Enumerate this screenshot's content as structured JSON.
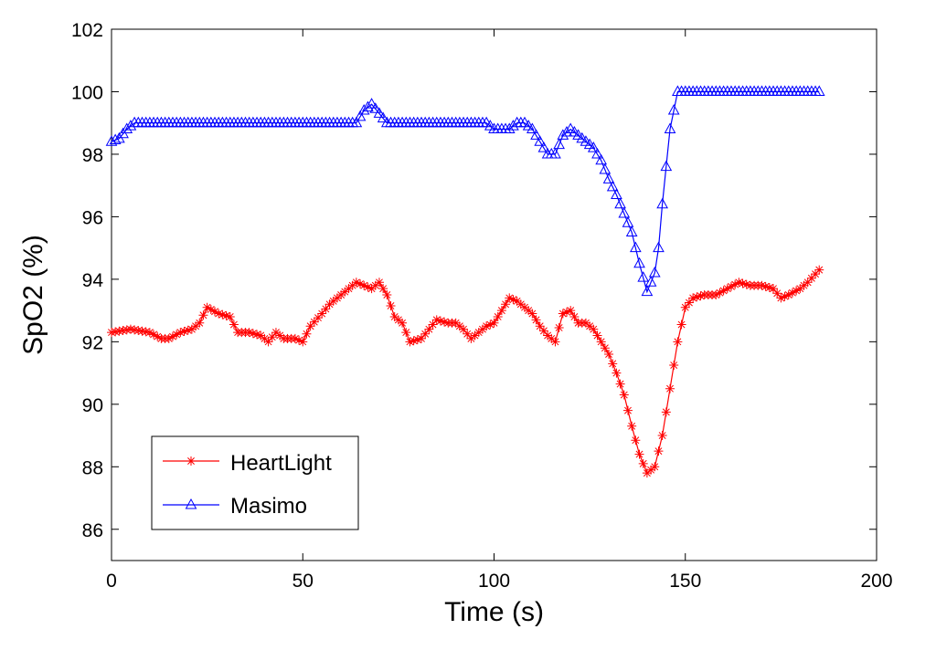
{
  "chart_data": {
    "type": "line",
    "title": "",
    "xlabel": "Time (s)",
    "ylabel": "SpO2 (%)",
    "xlim": [
      0,
      200
    ],
    "ylim": [
      85,
      102
    ],
    "xticks": [
      0,
      50,
      100,
      150,
      200
    ],
    "yticks": [
      86,
      88,
      90,
      92,
      94,
      96,
      98,
      100,
      102
    ],
    "grid": false,
    "legend": {
      "position": "bottom-left",
      "entries": [
        "HeartLight",
        "Masimo"
      ]
    },
    "series": [
      {
        "name": "HeartLight",
        "color": "#ff0000",
        "marker": "asterisk",
        "points": [
          [
            0,
            92.3
          ],
          [
            5,
            92.4
          ],
          [
            10,
            92.3
          ],
          [
            13,
            92.1
          ],
          [
            15,
            92.1
          ],
          [
            18,
            92.3
          ],
          [
            21,
            92.4
          ],
          [
            23,
            92.6
          ],
          [
            25,
            93.1
          ],
          [
            28,
            92.9
          ],
          [
            31,
            92.8
          ],
          [
            33,
            92.3
          ],
          [
            36,
            92.3
          ],
          [
            39,
            92.2
          ],
          [
            41,
            92.0
          ],
          [
            43,
            92.3
          ],
          [
            45,
            92.1
          ],
          [
            48,
            92.1
          ],
          [
            50,
            92.0
          ],
          [
            52,
            92.5
          ],
          [
            55,
            92.9
          ],
          [
            57,
            93.2
          ],
          [
            60,
            93.5
          ],
          [
            62,
            93.7
          ],
          [
            64,
            93.9
          ],
          [
            66,
            93.8
          ],
          [
            68,
            93.7
          ],
          [
            70,
            93.9
          ],
          [
            72,
            93.5
          ],
          [
            74,
            92.8
          ],
          [
            76,
            92.6
          ],
          [
            78,
            92.0
          ],
          [
            81,
            92.1
          ],
          [
            83,
            92.4
          ],
          [
            85,
            92.7
          ],
          [
            88,
            92.6
          ],
          [
            90,
            92.6
          ],
          [
            92,
            92.4
          ],
          [
            94,
            92.1
          ],
          [
            96,
            92.3
          ],
          [
            98,
            92.5
          ],
          [
            100,
            92.6
          ],
          [
            102,
            93.0
          ],
          [
            104,
            93.4
          ],
          [
            106,
            93.3
          ],
          [
            108,
            93.1
          ],
          [
            110,
            92.9
          ],
          [
            112,
            92.5
          ],
          [
            114,
            92.2
          ],
          [
            116,
            92.0
          ],
          [
            118,
            92.9
          ],
          [
            120,
            93.0
          ],
          [
            122,
            92.6
          ],
          [
            124,
            92.6
          ],
          [
            126,
            92.4
          ],
          [
            128,
            92.0
          ],
          [
            130,
            91.6
          ],
          [
            132,
            91.0
          ],
          [
            134,
            90.3
          ],
          [
            136,
            89.3
          ],
          [
            138,
            88.4
          ],
          [
            140,
            87.8
          ],
          [
            142,
            88.0
          ],
          [
            144,
            89.0
          ],
          [
            146,
            90.5
          ],
          [
            148,
            92.0
          ],
          [
            150,
            93.1
          ],
          [
            152,
            93.4
          ],
          [
            155,
            93.5
          ],
          [
            158,
            93.5
          ],
          [
            161,
            93.7
          ],
          [
            164,
            93.9
          ],
          [
            167,
            93.8
          ],
          [
            170,
            93.8
          ],
          [
            173,
            93.7
          ],
          [
            175,
            93.4
          ],
          [
            177,
            93.5
          ],
          [
            180,
            93.7
          ],
          [
            182,
            93.9
          ],
          [
            185,
            94.3
          ]
        ]
      },
      {
        "name": "Masimo",
        "color": "#0000ff",
        "marker": "triangle",
        "points": [
          [
            0,
            98.4
          ],
          [
            2,
            98.5
          ],
          [
            4,
            98.8
          ],
          [
            6,
            99.0
          ],
          [
            10,
            99.0
          ],
          [
            20,
            99.0
          ],
          [
            30,
            99.0
          ],
          [
            40,
            99.0
          ],
          [
            50,
            99.0
          ],
          [
            60,
            99.0
          ],
          [
            64,
            99.0
          ],
          [
            66,
            99.4
          ],
          [
            68,
            99.6
          ],
          [
            70,
            99.3
          ],
          [
            72,
            99.0
          ],
          [
            80,
            99.0
          ],
          [
            90,
            99.0
          ],
          [
            98,
            99.0
          ],
          [
            100,
            98.8
          ],
          [
            104,
            98.8
          ],
          [
            106,
            99.0
          ],
          [
            108,
            99.0
          ],
          [
            110,
            98.8
          ],
          [
            112,
            98.4
          ],
          [
            114,
            98.0
          ],
          [
            116,
            98.0
          ],
          [
            118,
            98.6
          ],
          [
            120,
            98.8
          ],
          [
            122,
            98.6
          ],
          [
            124,
            98.4
          ],
          [
            126,
            98.2
          ],
          [
            128,
            97.8
          ],
          [
            130,
            97.2
          ],
          [
            132,
            96.7
          ],
          [
            134,
            96.1
          ],
          [
            136,
            95.5
          ],
          [
            138,
            94.5
          ],
          [
            140,
            93.6
          ],
          [
            142,
            94.2
          ],
          [
            143,
            95.0
          ],
          [
            144,
            96.4
          ],
          [
            145,
            97.6
          ],
          [
            146,
            98.8
          ],
          [
            147,
            99.4
          ],
          [
            148,
            100.0
          ],
          [
            155,
            100.0
          ],
          [
            165,
            100.0
          ],
          [
            175,
            100.0
          ],
          [
            185,
            100.0
          ]
        ]
      }
    ]
  }
}
